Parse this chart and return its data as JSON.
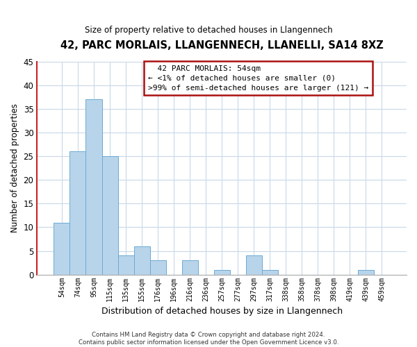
{
  "title": "42, PARC MORLAIS, LLANGENNECH, LLANELLI, SA14 8XZ",
  "subtitle": "Size of property relative to detached houses in Llangennech",
  "xlabel": "Distribution of detached houses by size in Llangennech",
  "ylabel": "Number of detached properties",
  "footer_line1": "Contains HM Land Registry data © Crown copyright and database right 2024.",
  "footer_line2": "Contains public sector information licensed under the Open Government Licence v3.0.",
  "categories": [
    "54sqm",
    "74sqm",
    "95sqm",
    "115sqm",
    "135sqm",
    "155sqm",
    "176sqm",
    "196sqm",
    "216sqm",
    "236sqm",
    "257sqm",
    "277sqm",
    "297sqm",
    "317sqm",
    "338sqm",
    "358sqm",
    "378sqm",
    "398sqm",
    "419sqm",
    "439sqm",
    "459sqm"
  ],
  "values": [
    11,
    26,
    37,
    25,
    4,
    6,
    3,
    0,
    3,
    0,
    1,
    0,
    4,
    1,
    0,
    0,
    0,
    0,
    0,
    1,
    0
  ],
  "bar_color": "#b8d4ea",
  "bar_edge_color": "#6aaad4",
  "highlight_edge_color": "#cc2222",
  "annotation_title": "42 PARC MORLAIS: 54sqm",
  "annotation_line1": "← <1% of detached houses are smaller (0)",
  "annotation_line2": ">99% of semi-detached houses are larger (121) →",
  "annotation_box_facecolor": "#ffffff",
  "annotation_box_edgecolor": "#aa1111",
  "ylim": [
    0,
    45
  ],
  "yticks": [
    0,
    5,
    10,
    15,
    20,
    25,
    30,
    35,
    40,
    45
  ],
  "background_color": "#ffffff",
  "grid_color": "#c8d8e8",
  "left_spine_color": "#cc2222"
}
